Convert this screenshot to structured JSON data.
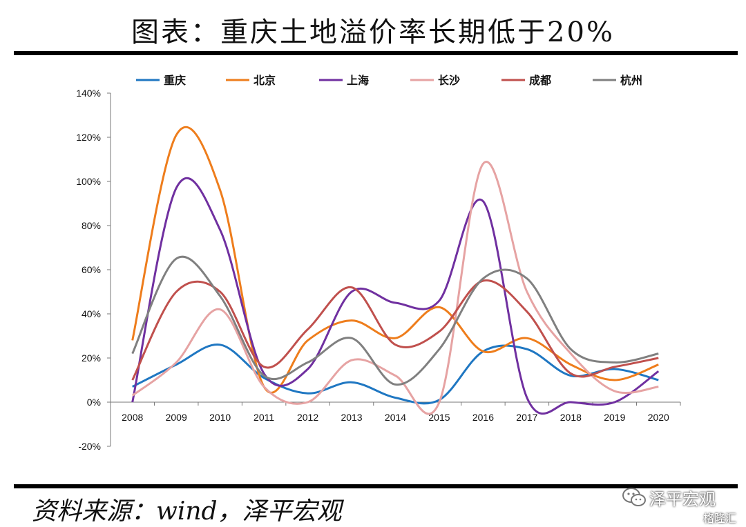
{
  "title": "图表：重庆土地溢价率长期低于20%",
  "source": "资料来源：wind，泽平宏观",
  "watermark": {
    "name": "泽平宏观",
    "brand": "格隆汇",
    "icon": "wechat-icon"
  },
  "chart_data": {
    "type": "line",
    "smooth": true,
    "legend_position": "top",
    "grid": false,
    "categories": [
      "2008",
      "2009",
      "2010",
      "2011",
      "2012",
      "2013",
      "2014",
      "2015",
      "2016",
      "2017",
      "2018",
      "2019",
      "2020"
    ],
    "ylim": [
      -20,
      140
    ],
    "yticks": [
      -20,
      0,
      20,
      40,
      60,
      80,
      100,
      120,
      140
    ],
    "ytick_labels": [
      "-20%",
      "0%",
      "20%",
      "40%",
      "60%",
      "80%",
      "100%",
      "120%",
      "140%"
    ],
    "series": [
      {
        "name": "重庆",
        "color": "#1f77c2",
        "values": [
          7,
          17,
          26,
          11,
          4,
          9,
          2,
          1,
          23,
          24,
          12,
          15,
          10
        ]
      },
      {
        "name": "北京",
        "color": "#ee7d1c",
        "values": [
          28,
          121,
          96,
          7,
          28,
          37,
          29,
          43,
          23,
          29,
          17,
          10,
          17
        ]
      },
      {
        "name": "上海",
        "color": "#7030a0",
        "values": [
          0,
          97,
          78,
          13,
          15,
          50,
          45,
          46,
          91,
          2,
          0,
          0,
          14
        ]
      },
      {
        "name": "长沙",
        "color": "#e6a3a3",
        "values": [
          3,
          18,
          42,
          7,
          0,
          19,
          12,
          0,
          108,
          50,
          22,
          5,
          7
        ]
      },
      {
        "name": "成都",
        "color": "#c0504d",
        "values": [
          10,
          50,
          50,
          16,
          33,
          52,
          26,
          32,
          55,
          41,
          13,
          16,
          20
        ]
      },
      {
        "name": "杭州",
        "color": "#808080",
        "values": [
          22,
          65,
          48,
          12,
          18,
          29,
          8,
          24,
          56,
          56,
          24,
          18,
          22
        ]
      }
    ]
  }
}
